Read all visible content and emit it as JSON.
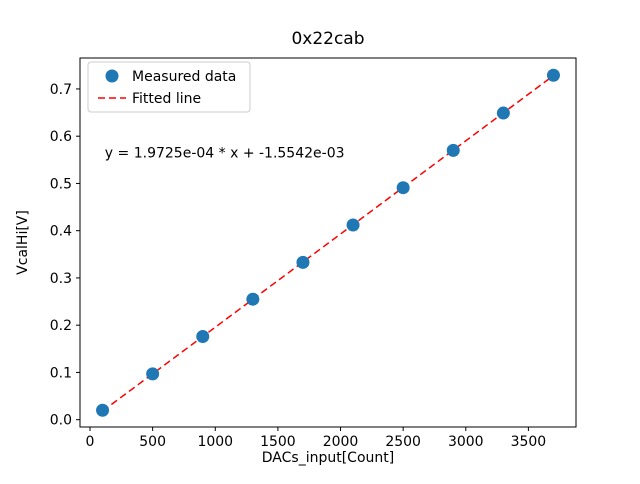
{
  "chart_data": {
    "type": "scatter",
    "title": "0x22cab",
    "xlabel": "DACs_input[Count]",
    "ylabel": "VcalHi[V]",
    "x": [
      100,
      500,
      900,
      1300,
      1700,
      2100,
      2500,
      2900,
      3300,
      3700
    ],
    "y": [
      0.02,
      0.097,
      0.176,
      0.255,
      0.333,
      0.412,
      0.491,
      0.57,
      0.649,
      0.729
    ],
    "fit": {
      "slope": 0.00019725,
      "intercept": -0.0015542,
      "x_start": 100,
      "x_end": 3700
    },
    "annotation": "y = 1.9725e-04 * x + -1.5542e-03",
    "legend": [
      {
        "label": "Measured data",
        "marker": "circle"
      },
      {
        "label": "Fitted line",
        "marker": "dashed-line"
      }
    ],
    "xticks": [
      0,
      500,
      1000,
      1500,
      2000,
      2500,
      3000,
      3500
    ],
    "yticks": [
      0.0,
      0.1,
      0.2,
      0.3,
      0.4,
      0.5,
      0.6,
      0.7
    ],
    "xlim": [
      -80,
      3880
    ],
    "ylim": [
      -0.0155,
      0.7655
    ],
    "colors": {
      "marker": "#1f77b4",
      "fit_line": "#ff0000",
      "spine": "#000000",
      "legend_edge": "#cccccc"
    },
    "legend_position": "upper left",
    "grid": false
  }
}
